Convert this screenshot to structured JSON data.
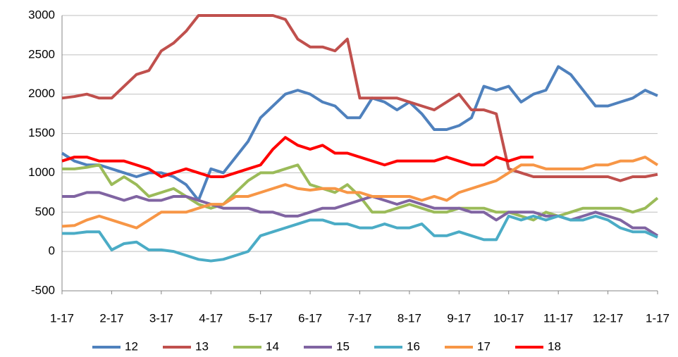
{
  "chart_data": {
    "type": "line",
    "categories": [
      "1-17",
      null,
      null,
      null,
      "2-17",
      null,
      null,
      null,
      "3-17",
      null,
      null,
      null,
      "4-17",
      null,
      null,
      null,
      "5-17",
      null,
      null,
      null,
      "6-17",
      null,
      null,
      null,
      "7-17",
      null,
      null,
      null,
      "8-17",
      null,
      null,
      null,
      "9-17",
      null,
      null,
      null,
      "10-17",
      null,
      null,
      null,
      "11-17",
      null,
      null,
      null,
      "12-17",
      null,
      null,
      null,
      "1-17"
    ],
    "series": [
      {
        "name": "12",
        "color": "#4f81bd",
        "values": [
          1250,
          1150,
          1100,
          1100,
          1050,
          1000,
          950,
          1000,
          1000,
          950,
          850,
          650,
          1050,
          1000,
          1200,
          1400,
          1700,
          1850,
          2000,
          2050,
          2000,
          1900,
          1850,
          1700,
          1700,
          1950,
          1900,
          1800,
          1900,
          1750,
          1550,
          1550,
          1600,
          1700,
          2100,
          2050,
          2100,
          1900,
          2000,
          2050,
          2350,
          2250,
          2050,
          1850,
          1850,
          1900,
          1950,
          2050,
          1980
        ]
      },
      {
        "name": "13",
        "color": "#c0504d",
        "values": [
          1950,
          1970,
          2000,
          1950,
          1950,
          2100,
          2250,
          2300,
          2550,
          2650,
          2800,
          3000,
          3000,
          3000,
          3000,
          3000,
          3000,
          3000,
          2950,
          2700,
          2600,
          2600,
          2550,
          2700,
          1950,
          1950,
          1950,
          1950,
          1900,
          1850,
          1800,
          1900,
          2000,
          1800,
          1800,
          1750,
          1050,
          1000,
          950,
          950,
          950,
          950,
          950,
          950,
          950,
          900,
          950,
          950,
          980
        ]
      },
      {
        "name": "14",
        "color": "#9bbb59",
        "values": [
          1050,
          1050,
          1070,
          1100,
          850,
          950,
          850,
          700,
          750,
          800,
          700,
          600,
          550,
          600,
          750,
          900,
          1000,
          1000,
          1050,
          1100,
          850,
          800,
          750,
          850,
          700,
          500,
          500,
          550,
          600,
          550,
          500,
          500,
          550,
          550,
          550,
          500,
          500,
          450,
          400,
          500,
          450,
          500,
          550,
          550,
          550,
          550,
          500,
          550,
          680
        ]
      },
      {
        "name": "15",
        "color": "#8064a2",
        "values": [
          700,
          700,
          750,
          750,
          700,
          650,
          700,
          650,
          650,
          700,
          700,
          650,
          600,
          550,
          550,
          550,
          500,
          500,
          450,
          450,
          500,
          550,
          550,
          600,
          650,
          700,
          650,
          600,
          650,
          600,
          550,
          550,
          550,
          500,
          500,
          400,
          500,
          500,
          500,
          450,
          450,
          400,
          450,
          500,
          450,
          400,
          300,
          300,
          200
        ]
      },
      {
        "name": "16",
        "color": "#4bacc6",
        "values": [
          230,
          230,
          250,
          250,
          20,
          100,
          120,
          20,
          20,
          0,
          -50,
          -100,
          -120,
          -100,
          -50,
          0,
          200,
          250,
          300,
          350,
          400,
          400,
          350,
          350,
          300,
          300,
          350,
          300,
          300,
          350,
          200,
          200,
          250,
          200,
          150,
          150,
          450,
          400,
          450,
          400,
          450,
          400,
          400,
          450,
          400,
          300,
          250,
          250,
          180
        ]
      },
      {
        "name": "17",
        "color": "#f79646",
        "values": [
          320,
          330,
          400,
          450,
          400,
          350,
          300,
          400,
          500,
          500,
          500,
          550,
          600,
          600,
          700,
          700,
          750,
          800,
          850,
          800,
          780,
          800,
          800,
          750,
          750,
          700,
          700,
          700,
          700,
          650,
          700,
          650,
          750,
          800,
          850,
          900,
          1000,
          1100,
          1100,
          1050,
          1050,
          1050,
          1050,
          1100,
          1100,
          1150,
          1150,
          1200,
          1100
        ]
      },
      {
        "name": "18",
        "color": "#ff0000",
        "values": [
          1150,
          1200,
          1200,
          1150,
          1150,
          1150,
          1100,
          1050,
          950,
          1000,
          1050,
          1000,
          950,
          950,
          1000,
          1050,
          1100,
          1300,
          1450,
          1350,
          1300,
          1350,
          1250,
          1250,
          1200,
          1150,
          1100,
          1150,
          1150,
          1150,
          1150,
          1200,
          1150,
          1100,
          1100,
          1200,
          1150,
          1200,
          1200,
          null,
          null,
          null,
          null,
          null,
          null,
          null,
          null,
          null,
          null
        ]
      }
    ],
    "ylim": [
      -500,
      3000
    ],
    "yticks": [
      -500,
      0,
      500,
      1000,
      1500,
      2000,
      2500,
      3000
    ],
    "grid": true,
    "legend": "bottom"
  }
}
